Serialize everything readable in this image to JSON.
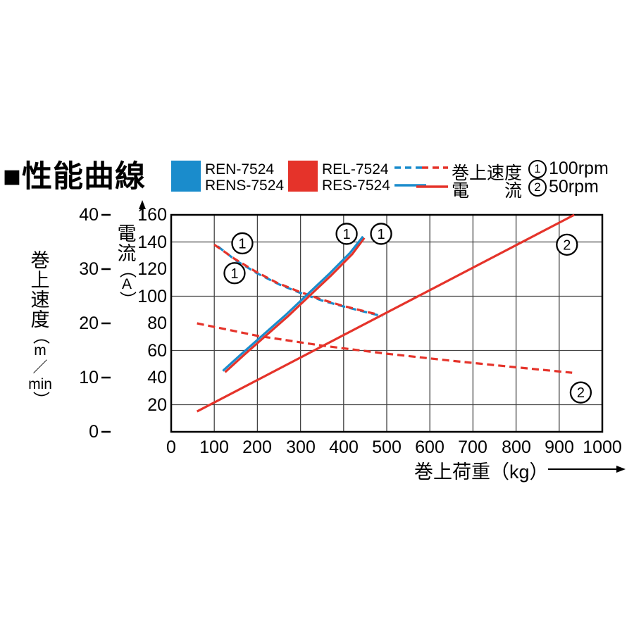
{
  "title": {
    "text": "■性能曲線"
  },
  "colors": {
    "blue": "#1a8ccc",
    "red": "#e5332a",
    "grid": "#444444",
    "axis": "#000000"
  },
  "legend": {
    "blue_models": [
      "REN-7524",
      "RENS-7524"
    ],
    "red_models": [
      "REL-7524",
      "RES-7524"
    ],
    "dashed_sample_label": "巻上速度",
    "solid_sample_label": "電流",
    "rpm_items": [
      {
        "num": "1",
        "label": "100rpm"
      },
      {
        "num": "2",
        "label": "50rpm"
      }
    ]
  },
  "axes": {
    "speed": {
      "chars": [
        "巻",
        "上",
        "速",
        "度",
        "（",
        "m",
        "／",
        "min",
        "）"
      ],
      "ticks": [
        40,
        30,
        20,
        10,
        0
      ]
    },
    "current": {
      "chars": [
        "電",
        "流",
        "（",
        "A",
        "）"
      ],
      "ticks": [
        160,
        140,
        120,
        100,
        80,
        60,
        40,
        20
      ]
    },
    "load": {
      "label": "巻上荷重（kg）",
      "ticks": [
        0,
        100,
        200,
        300,
        400,
        500,
        600,
        700,
        800,
        900,
        1000
      ]
    }
  },
  "chart_data": {
    "type": "line",
    "xlabel": "巻上荷重（kg）",
    "ylabel_left_outer": "巻上速度（m／min）",
    "ylabel_left_inner": "電流（A）",
    "xlim": [
      0,
      1000
    ],
    "ylim_current": [
      0,
      160
    ],
    "ylim_speed": [
      0,
      40
    ],
    "grid": {
      "x_lines": [
        100,
        200,
        300,
        400,
        500,
        600,
        700,
        800,
        900
      ],
      "y_lines_current": [
        20,
        60,
        100,
        140
      ]
    },
    "series": [
      {
        "name": "hoist-speed-100rpm-blue",
        "model": "REN-7524/RENS-7524",
        "quantity": "巻上速度",
        "rpm": "100rpm",
        "axis": "speed",
        "unit": "m/min",
        "style": "dashed",
        "color": "#1a8ccc",
        "points": [
          [
            108,
            34.2
          ],
          [
            150,
            31.6
          ],
          [
            200,
            29.2
          ],
          [
            250,
            27.2
          ],
          [
            300,
            25.6
          ],
          [
            350,
            24.2
          ],
          [
            400,
            23.1
          ],
          [
            450,
            22.1
          ],
          [
            490,
            21.3
          ]
        ]
      },
      {
        "name": "hoist-speed-100rpm-red",
        "model": "REL-7524/RES-7524",
        "quantity": "巻上速度",
        "rpm": "100rpm",
        "axis": "speed",
        "unit": "m/min",
        "style": "dashed",
        "color": "#e5332a",
        "points": [
          [
            100,
            34.5
          ],
          [
            145,
            32.0
          ],
          [
            195,
            29.6
          ],
          [
            245,
            27.5
          ],
          [
            295,
            25.9
          ],
          [
            345,
            24.5
          ],
          [
            395,
            23.3
          ],
          [
            445,
            22.3
          ],
          [
            480,
            21.6
          ]
        ]
      },
      {
        "name": "current-100rpm-red",
        "model": "REL-7524/RES-7524",
        "quantity": "電流",
        "rpm": "100rpm",
        "axis": "current",
        "unit": "A",
        "style": "solid",
        "color": "#e5332a",
        "points": [
          [
            125,
            44
          ],
          [
            170,
            57
          ],
          [
            220,
            71
          ],
          [
            270,
            85
          ],
          [
            320,
            100
          ],
          [
            370,
            115
          ],
          [
            420,
            131
          ],
          [
            448,
            143
          ]
        ]
      },
      {
        "name": "current-100rpm-blue",
        "model": "REN-7524/RENS-7524",
        "quantity": "電流",
        "rpm": "100rpm",
        "axis": "current",
        "unit": "A",
        "style": "solid",
        "color": "#1a8ccc",
        "points": [
          [
            120,
            45
          ],
          [
            165,
            58
          ],
          [
            215,
            72
          ],
          [
            265,
            86
          ],
          [
            315,
            101
          ],
          [
            365,
            116
          ],
          [
            415,
            132
          ],
          [
            445,
            144
          ]
        ]
      },
      {
        "name": "current-50rpm-red",
        "model": "REL-7524/RES-7524",
        "quantity": "電流",
        "rpm": "50rpm",
        "axis": "current",
        "unit": "A",
        "style": "solid",
        "color": "#e5332a",
        "points": [
          [
            60,
            15
          ],
          [
            935,
            160
          ]
        ]
      },
      {
        "name": "hoist-speed-50rpm-red",
        "model": "REL-7524/RES-7524",
        "quantity": "巻上速度",
        "rpm": "50rpm",
        "axis": "speed",
        "unit": "m/min",
        "style": "dashed",
        "color": "#e5332a",
        "points": [
          [
            60,
            20
          ],
          [
            200,
            17.7
          ],
          [
            350,
            15.9
          ],
          [
            500,
            14.4
          ],
          [
            650,
            13.1
          ],
          [
            800,
            11.9
          ],
          [
            930,
            10.9
          ]
        ]
      }
    ],
    "annotations": [
      {
        "num": "1",
        "x": 165,
        "y_current": 139
      },
      {
        "num": "1",
        "x": 147,
        "y_current": 117
      },
      {
        "num": "1",
        "x": 407,
        "y_current": 146
      },
      {
        "num": "1",
        "x": 487,
        "y_current": 146
      },
      {
        "num": "2",
        "x": 918,
        "y_current": 138
      },
      {
        "num": "2",
        "x": 950,
        "y_current": 29
      }
    ]
  }
}
